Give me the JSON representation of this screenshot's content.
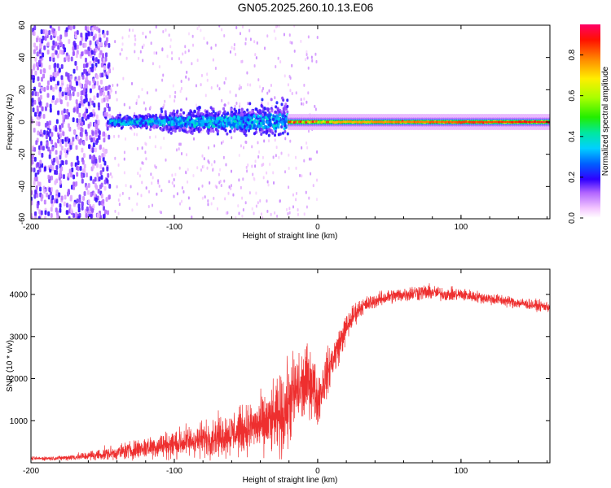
{
  "title": "GN05.2025.260.10.13.E06",
  "chart_data": [
    {
      "type": "heatmap",
      "title": "GN05.2025.260.10.13.E06",
      "xlabel": "Height of straight line (km)",
      "ylabel": "Frequency (Hz)",
      "xlim": [
        -200,
        162
      ],
      "ylim": [
        -60,
        60
      ],
      "xticks": [
        -200,
        -100,
        0,
        100
      ],
      "yticks": [
        -60,
        -40,
        -20,
        0,
        20,
        40,
        60
      ],
      "xtick_labels": [
        "-200",
        "-100",
        "0",
        "100"
      ],
      "ytick_labels": [
        "-60",
        "-40",
        "-20",
        "0",
        "20",
        "40",
        "60"
      ],
      "colorbar": {
        "label": "Normalized spectral amplitude",
        "range": [
          0,
          0.95
        ],
        "ticks": [
          0.0,
          0.2,
          0.4,
          0.6,
          0.8
        ],
        "tick_labels": [
          "0.0",
          "0.2",
          "0.4",
          "0.6",
          "0.8"
        ]
      },
      "features": {
        "carrier_frequency_hz": 0,
        "noise_region_km": [
          -200,
          -145
        ],
        "spread_band_km": [
          -145,
          -20
        ],
        "stable_band_km": [
          -20,
          162
        ]
      }
    },
    {
      "type": "line",
      "xlabel": "Height of straight line (km)",
      "ylabel": "SNR (10 * v/v)",
      "xlim": [
        -200,
        162
      ],
      "ylim": [
        0,
        4600
      ],
      "xticks": [
        -200,
        -100,
        0,
        100
      ],
      "yticks": [
        1000,
        2000,
        3000,
        4000
      ],
      "xtick_labels": [
        "-200",
        "-100",
        "0",
        "100"
      ],
      "ytick_labels": [
        "1000",
        "2000",
        "3000",
        "4000"
      ],
      "series": [
        {
          "name": "SNR",
          "color": "#ee2f2f",
          "x": [
            -200,
            -180,
            -160,
            -140,
            -120,
            -100,
            -80,
            -60,
            -40,
            -30,
            -25,
            -20,
            -15,
            -10,
            -5,
            0,
            5,
            10,
            15,
            20,
            25,
            30,
            40,
            50,
            60,
            70,
            80,
            90,
            100,
            110,
            120,
            130,
            140,
            150,
            162
          ],
          "y_mean": [
            100,
            110,
            160,
            240,
            360,
            450,
            560,
            700,
            900,
            1000,
            1100,
            1400,
            1700,
            1800,
            2000,
            1500,
            2000,
            2400,
            2800,
            3200,
            3500,
            3700,
            3850,
            3950,
            4000,
            4050,
            4050,
            4000,
            4000,
            3950,
            3900,
            3850,
            3800,
            3750,
            3700
          ],
          "spread": [
            60,
            80,
            160,
            260,
            380,
            500,
            600,
            750,
            900,
            1200,
            1400,
            1500,
            1400,
            1300,
            1200,
            900,
            800,
            700,
            600,
            500,
            400,
            300,
            250,
            250,
            250,
            280,
            250,
            220,
            220,
            200,
            200,
            200,
            190,
            180,
            180
          ]
        }
      ]
    }
  ]
}
